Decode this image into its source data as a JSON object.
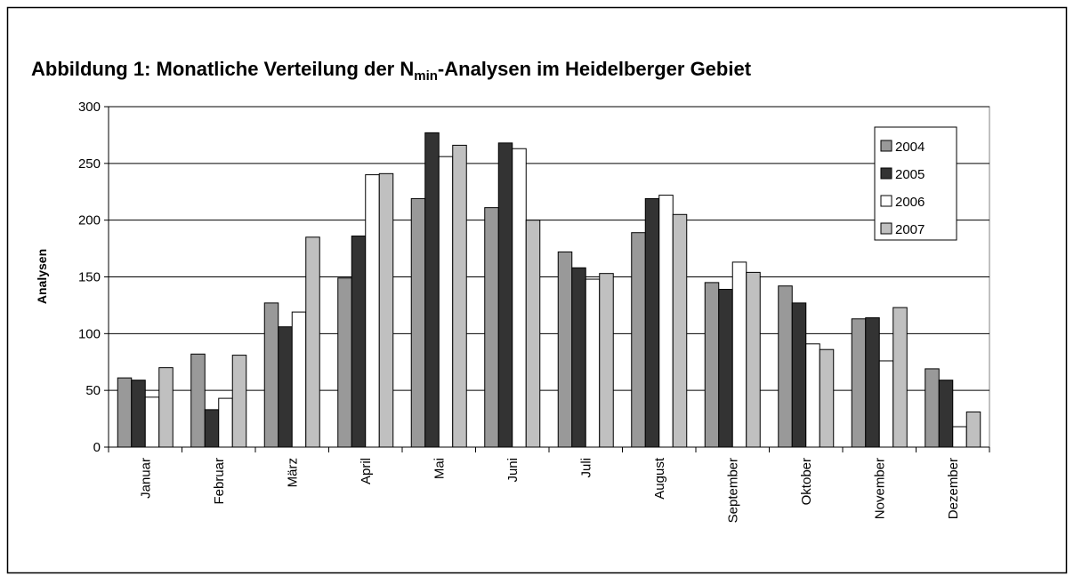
{
  "chart_data": {
    "type": "bar",
    "title": "Abbildung 1: Monatliche Verteilung der N",
    "title_subscript": "min",
    "title_suffix": "-Analysen im Heidelberger Gebiet",
    "y_label": "Analysen",
    "categories": [
      "Januar",
      "Februar",
      "März",
      "April",
      "Mai",
      "Juni",
      "Juli",
      "August",
      "September",
      "Oktober",
      "November",
      "Dezember"
    ],
    "series": [
      {
        "name": "2004",
        "color": "#999999",
        "values": [
          61,
          82,
          127,
          149,
          219,
          211,
          172,
          189,
          145,
          142,
          113,
          69
        ]
      },
      {
        "name": "2005",
        "color": "#333333",
        "values": [
          59,
          33,
          106,
          186,
          277,
          268,
          158,
          219,
          139,
          127,
          114,
          59
        ]
      },
      {
        "name": "2006",
        "color": "#ffffff",
        "values": [
          44,
          43,
          119,
          240,
          256,
          263,
          148,
          222,
          163,
          91,
          76,
          18
        ]
      },
      {
        "name": "2007",
        "color": "#c0c0c0",
        "values": [
          70,
          81,
          185,
          241,
          266,
          200,
          153,
          205,
          154,
          86,
          123,
          31
        ]
      }
    ],
    "ylim": [
      0,
      300
    ],
    "yticks": [
      0,
      50,
      100,
      150,
      200,
      250,
      300
    ],
    "grid": true,
    "legend": "right"
  }
}
